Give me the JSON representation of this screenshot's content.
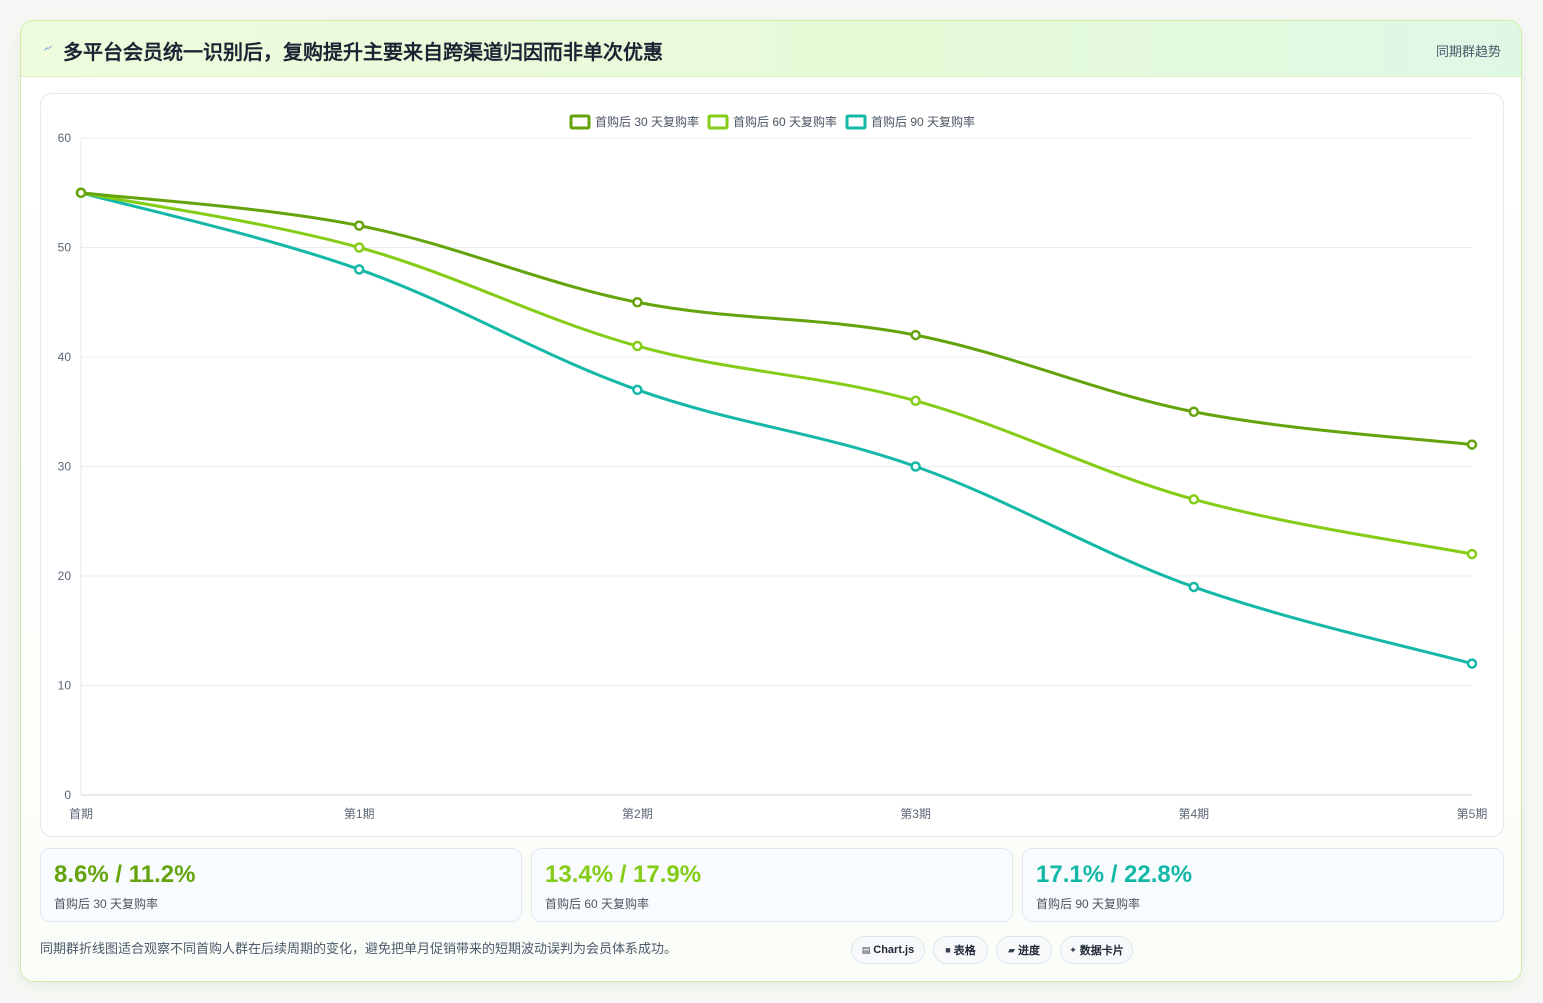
{
  "header": {
    "title": "多平台会员统一识别后，复购提升主要来自跨渠道归因而非单次优惠",
    "tag": "同期群趋势"
  },
  "colors": {
    "series30": "#65a30d",
    "series60": "#84cc16",
    "series90": "#14b8a6"
  },
  "chart_data": {
    "type": "line",
    "categories": [
      "首期",
      "第1期",
      "第2期",
      "第3期",
      "第4期",
      "第5期"
    ],
    "series": [
      {
        "name": "首购后 30 天复购率",
        "values": [
          55,
          52,
          45,
          42,
          35,
          32
        ]
      },
      {
        "name": "首购后 60 天复购率",
        "values": [
          55,
          50,
          41,
          36,
          27,
          22
        ]
      },
      {
        "name": "首购后 90 天复购率",
        "values": [
          55,
          48,
          37,
          30,
          19,
          12
        ]
      }
    ],
    "ylim": [
      0,
      60
    ],
    "yticks": [
      "0",
      "10",
      "20",
      "30",
      "40",
      "50",
      "60"
    ],
    "legend_position": "top-center",
    "grid": true
  },
  "kpis": [
    {
      "value": "8.6% / 11.2%",
      "label": "首购后 30 天复购率"
    },
    {
      "value": "13.4% / 17.9%",
      "label": "首购后 60 天复购率"
    },
    {
      "value": "17.1% / 22.8%",
      "label": "首购后 90 天复购率"
    }
  ],
  "note": "同期群折线图适合观察不同首购人群在后续周期的变化，避免把单月促销带来的短期波动误判为会员体系成功。",
  "pills": [
    {
      "icon": "chart-icon",
      "glyph": "▤",
      "label": "Chart.js"
    },
    {
      "icon": "table-icon",
      "glyph": "■",
      "label": "表格"
    },
    {
      "icon": "progress-icon",
      "glyph": "▰",
      "label": "进度"
    },
    {
      "icon": "card-icon",
      "glyph": "✦",
      "label": "数据卡片"
    }
  ]
}
